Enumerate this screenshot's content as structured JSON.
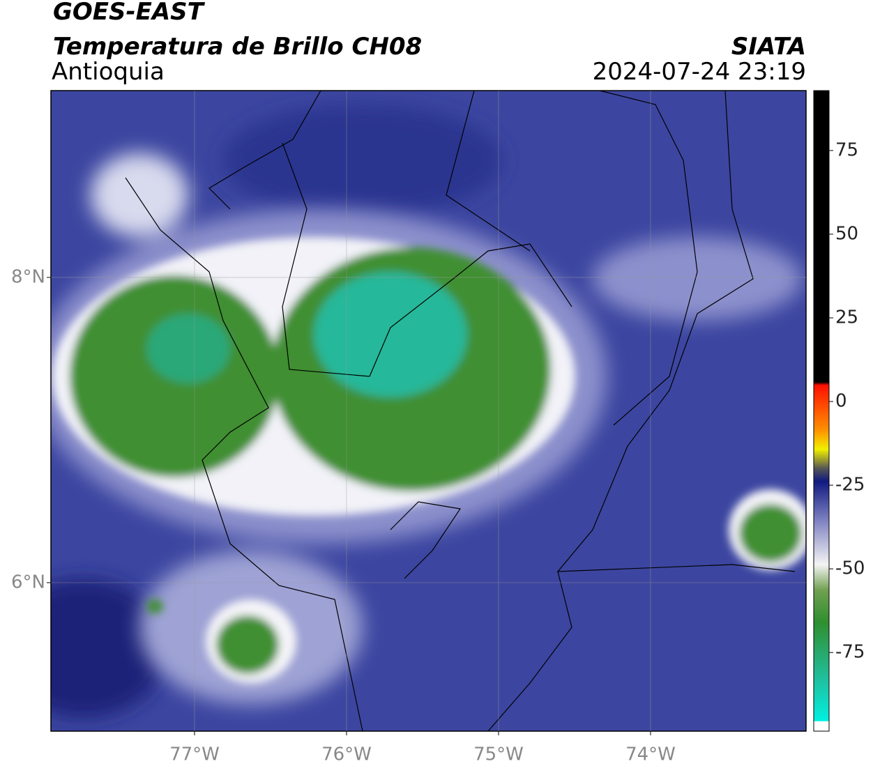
{
  "header": {
    "title": "GOES-EAST",
    "subtitle": "Temperatura de Brillo CH08",
    "region": "Antioquia",
    "source": "SIATA",
    "timestamp": "2024-07-24 23:19"
  },
  "map": {
    "xlim": [
      -77.945,
      -72.977
    ],
    "ylim": [
      5.027,
      9.224
    ],
    "xticks": [
      {
        "value": -77,
        "label": "77°W"
      },
      {
        "value": -76,
        "label": "76°W"
      },
      {
        "value": -75,
        "label": "75°W"
      },
      {
        "value": -74,
        "label": "74°W"
      }
    ],
    "yticks": [
      {
        "value": 8,
        "label": "8°N"
      },
      {
        "value": 6,
        "label": "6°N"
      }
    ],
    "grid": true
  },
  "colorbar": {
    "lim": [
      -98.5,
      92.9
    ],
    "ticks": [
      75,
      50,
      25,
      0,
      -25,
      -50,
      -75
    ]
  }
}
